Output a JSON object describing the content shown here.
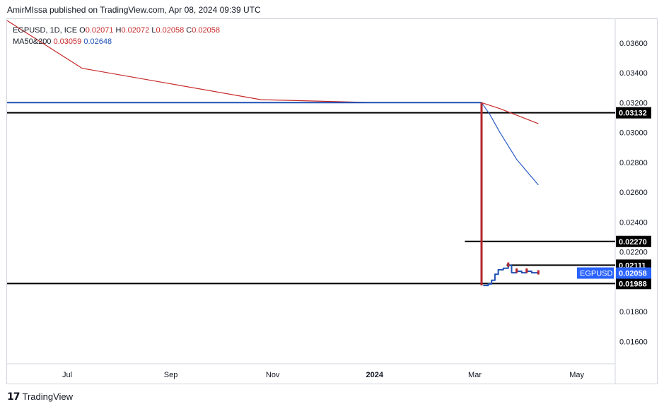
{
  "header": {
    "published": "AmirMIssa published on TradingView.com, Apr 08, 2024 09:39 UTC"
  },
  "legend": {
    "symbol_line": "EGPUSD, 1D, ICE",
    "o_label": "O",
    "o_value": "0.02071",
    "h_label": "H",
    "h_value": "0.02072",
    "l_label": "L",
    "l_value": "0.02058",
    "c_label": "C",
    "c_value": "0.02058",
    "ma_label": "MA50&200",
    "ma50_value": "0.03059",
    "ma200_value": "0.02648"
  },
  "footer": {
    "brand": "TradingView"
  },
  "colors": {
    "price_line": "#1e50b4",
    "ma_fast": "#c62828",
    "ma_slow": "#2a5cc8",
    "hline": "#000000",
    "symbol_badge": "#2962ff"
  },
  "chart_data": {
    "type": "line",
    "symbol": "EGPUSD",
    "interval": "1D",
    "x_ticks": [
      "Jul",
      "Sep",
      "Nov",
      "2024",
      "Mar",
      "May"
    ],
    "y_ticks": [
      "0.03600",
      "0.03400",
      "0.03200",
      "0.03000",
      "0.02800",
      "0.02600",
      "0.02400",
      "0.02200",
      "0.01800",
      "0.01600"
    ],
    "ylim": [
      0.0145,
      0.0376
    ],
    "xlim": [
      "2023-05-26",
      "2024-05-24"
    ],
    "price": [
      {
        "x": "2023-05-26",
        "y": 0.032
      },
      {
        "x": "2023-07-01",
        "y": 0.032
      },
      {
        "x": "2023-09-01",
        "y": 0.032
      },
      {
        "x": "2023-11-01",
        "y": 0.032
      },
      {
        "x": "2024-01-01",
        "y": 0.032
      },
      {
        "x": "2024-03-05",
        "y": 0.032
      },
      {
        "x": "2024-03-06",
        "y": 0.01975
      },
      {
        "x": "2024-03-09",
        "y": 0.01985
      },
      {
        "x": "2024-03-11",
        "y": 0.0201
      },
      {
        "x": "2024-03-13",
        "y": 0.0205
      },
      {
        "x": "2024-03-15",
        "y": 0.0208
      },
      {
        "x": "2024-03-18",
        "y": 0.0209
      },
      {
        "x": "2024-03-21",
        "y": 0.0211
      },
      {
        "x": "2024-03-23",
        "y": 0.0206
      },
      {
        "x": "2024-03-26",
        "y": 0.0207
      },
      {
        "x": "2024-03-29",
        "y": 0.0206
      },
      {
        "x": "2024-04-01",
        "y": 0.0207
      },
      {
        "x": "2024-04-04",
        "y": 0.0206
      },
      {
        "x": "2024-04-08",
        "y": 0.02058
      }
    ],
    "ma_red": [
      {
        "x": "2023-05-26",
        "y": 0.0375
      },
      {
        "x": "2023-07-10",
        "y": 0.0343
      },
      {
        "x": "2023-08-30",
        "y": 0.0333
      },
      {
        "x": "2023-10-25",
        "y": 0.0322
      },
      {
        "x": "2024-01-01",
        "y": 0.032
      },
      {
        "x": "2024-03-05",
        "y": 0.032
      },
      {
        "x": "2024-03-16",
        "y": 0.0316
      },
      {
        "x": "2024-04-08",
        "y": 0.03059
      }
    ],
    "ma_blue": [
      {
        "x": "2024-03-05",
        "y": 0.032
      },
      {
        "x": "2024-03-10",
        "y": 0.0312
      },
      {
        "x": "2024-03-16",
        "y": 0.03
      },
      {
        "x": "2024-03-26",
        "y": 0.0282
      },
      {
        "x": "2024-04-08",
        "y": 0.02648
      }
    ],
    "hlines": [
      {
        "y": 0.03132,
        "label": "0.03132",
        "from": "2023-05-26"
      },
      {
        "y": 0.0227,
        "label": "0.02270",
        "from": "2024-02-24"
      },
      {
        "y": 0.02111,
        "label": "0.02111",
        "from": "2024-03-20"
      },
      {
        "y": 0.01988,
        "label": "0.01988",
        "from": "2023-05-26"
      }
    ],
    "last_price": {
      "y": 0.02058,
      "label": "0.02058",
      "symbol": "EGPUSD"
    },
    "grid": false
  }
}
